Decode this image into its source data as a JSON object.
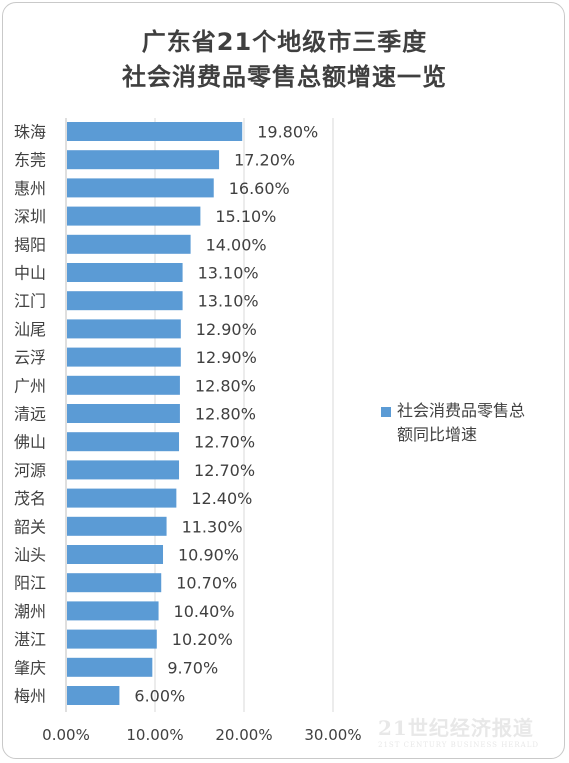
{
  "chart_data": {
    "type": "bar",
    "orientation": "horizontal",
    "title_lines": [
      "广东省21个地级市三季度",
      "社会消费品零售总额增速一览"
    ],
    "categories": [
      "珠海",
      "东莞",
      "惠州",
      "深圳",
      "揭阳",
      "中山",
      "江门",
      "汕尾",
      "云浮",
      "广州",
      "清远",
      "佛山",
      "河源",
      "茂名",
      "韶关",
      "汕头",
      "阳江",
      "潮州",
      "湛江",
      "肇庆",
      "梅州"
    ],
    "series": [
      {
        "name": "社会消费品零售总额同比增速",
        "values": [
          19.8,
          17.2,
          16.6,
          15.1,
          14.0,
          13.1,
          13.1,
          12.9,
          12.9,
          12.8,
          12.8,
          12.7,
          12.7,
          12.4,
          11.3,
          10.9,
          10.7,
          10.4,
          10.2,
          9.7,
          6.0
        ],
        "labels": [
          "19.80%",
          "17.20%",
          "16.60%",
          "15.10%",
          "14.00%",
          "13.10%",
          "13.10%",
          "12.90%",
          "12.90%",
          "12.80%",
          "12.80%",
          "12.70%",
          "12.70%",
          "12.40%",
          "11.30%",
          "10.90%",
          "10.70%",
          "10.40%",
          "10.20%",
          "9.70%",
          "6.00%"
        ]
      }
    ],
    "x_ticks": [
      "0.00%",
      "10.00%",
      "20.00%",
      "30.00%"
    ],
    "xlim": [
      0,
      30
    ],
    "grid": true,
    "bar_color": "#5b9bd5",
    "legend_position": "right"
  },
  "legend": {
    "line1": "社会消费品零售总额同比增速",
    "text_line1": "社会消费品零售总",
    "text_line2": "额同比增速"
  },
  "watermark": {
    "line1": "21世纪经济报道",
    "line2": "21ST CENTURY BUSINESS HERALD"
  }
}
